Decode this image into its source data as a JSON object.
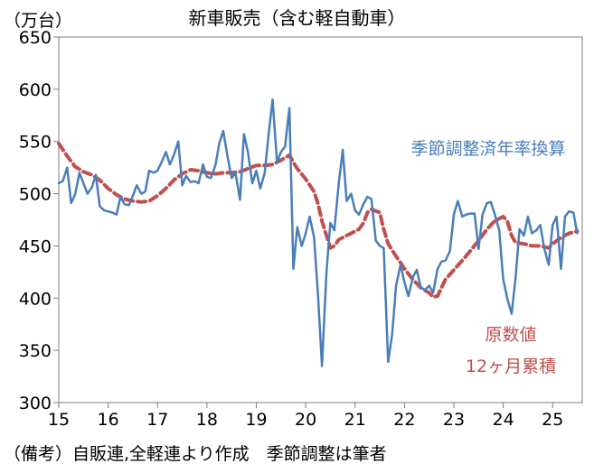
{
  "chart_data": {
    "type": "line",
    "title": "新車販売（含む軽自動車）",
    "unit_label": "（万台）",
    "xlabel": "",
    "ylabel": "",
    "ylim": [
      300,
      650
    ],
    "xlim": [
      15,
      25.6
    ],
    "yticks": [
      "650",
      "600",
      "550",
      "500",
      "450",
      "400",
      "350",
      "300"
    ],
    "xticks": [
      "15",
      "16",
      "17",
      "18",
      "19",
      "20",
      "21",
      "22",
      "23",
      "24",
      "25"
    ],
    "grid": false,
    "footnote": "（備考）自販連,全軽連より作成　季節調整は筆者",
    "series": [
      {
        "name": "季節調整済年率換算",
        "label_lines": [
          "季節調整済年率換算"
        ],
        "color": "#4a7ebb",
        "style": "solid",
        "points": [
          [
            15.0,
            510
          ],
          [
            15.08,
            512
          ],
          [
            15.17,
            525
          ],
          [
            15.25,
            491
          ],
          [
            15.33,
            499
          ],
          [
            15.42,
            520
          ],
          [
            15.5,
            510
          ],
          [
            15.58,
            500
          ],
          [
            15.67,
            506
          ],
          [
            15.75,
            518
          ],
          [
            15.83,
            488
          ],
          [
            15.92,
            484
          ],
          [
            16.0,
            483
          ],
          [
            16.08,
            482
          ],
          [
            16.17,
            480
          ],
          [
            16.25,
            497
          ],
          [
            16.33,
            490
          ],
          [
            16.42,
            489
          ],
          [
            16.5,
            498
          ],
          [
            16.58,
            508
          ],
          [
            16.67,
            500
          ],
          [
            16.75,
            502
          ],
          [
            16.83,
            522
          ],
          [
            16.92,
            520
          ],
          [
            17.0,
            522
          ],
          [
            17.08,
            530
          ],
          [
            17.17,
            540
          ],
          [
            17.25,
            528
          ],
          [
            17.33,
            537
          ],
          [
            17.42,
            550
          ],
          [
            17.5,
            508
          ],
          [
            17.58,
            517
          ],
          [
            17.67,
            511
          ],
          [
            17.75,
            512
          ],
          [
            17.83,
            510
          ],
          [
            17.92,
            528
          ],
          [
            18.0,
            516
          ],
          [
            18.08,
            515
          ],
          [
            18.17,
            527
          ],
          [
            18.25,
            548
          ],
          [
            18.33,
            560
          ],
          [
            18.42,
            535
          ],
          [
            18.5,
            515
          ],
          [
            18.58,
            520
          ],
          [
            18.67,
            494
          ],
          [
            18.75,
            557
          ],
          [
            18.83,
            540
          ],
          [
            18.92,
            510
          ],
          [
            19.0,
            522
          ],
          [
            19.08,
            505
          ],
          [
            19.17,
            520
          ],
          [
            19.25,
            557
          ],
          [
            19.33,
            590
          ],
          [
            19.42,
            530
          ],
          [
            19.5,
            540
          ],
          [
            19.58,
            545
          ],
          [
            19.67,
            582
          ],
          [
            19.75,
            428
          ],
          [
            19.83,
            468
          ],
          [
            19.92,
            450
          ],
          [
            20.0,
            462
          ],
          [
            20.08,
            478
          ],
          [
            20.17,
            458
          ],
          [
            20.25,
            402
          ],
          [
            20.33,
            335
          ],
          [
            20.42,
            425
          ],
          [
            20.5,
            472
          ],
          [
            20.58,
            465
          ],
          [
            20.67,
            510
          ],
          [
            20.75,
            542
          ],
          [
            20.83,
            493
          ],
          [
            20.92,
            500
          ],
          [
            21.0,
            484
          ],
          [
            21.08,
            480
          ],
          [
            21.17,
            490
          ],
          [
            21.25,
            497
          ],
          [
            21.33,
            495
          ],
          [
            21.42,
            455
          ],
          [
            21.5,
            450
          ],
          [
            21.58,
            448
          ],
          [
            21.67,
            339
          ],
          [
            21.75,
            365
          ],
          [
            21.83,
            412
          ],
          [
            21.92,
            432
          ],
          [
            22.0,
            415
          ],
          [
            22.08,
            402
          ],
          [
            22.17,
            420
          ],
          [
            22.25,
            427
          ],
          [
            22.33,
            410
          ],
          [
            22.42,
            408
          ],
          [
            22.5,
            412
          ],
          [
            22.58,
            405
          ],
          [
            22.67,
            428
          ],
          [
            22.75,
            435
          ],
          [
            22.83,
            436
          ],
          [
            22.92,
            445
          ],
          [
            23.0,
            480
          ],
          [
            23.08,
            493
          ],
          [
            23.17,
            478
          ],
          [
            23.25,
            480
          ],
          [
            23.33,
            481
          ],
          [
            23.42,
            481
          ],
          [
            23.5,
            447
          ],
          [
            23.58,
            480
          ],
          [
            23.67,
            491
          ],
          [
            23.75,
            492
          ],
          [
            23.83,
            480
          ],
          [
            23.92,
            465
          ],
          [
            24.0,
            418
          ],
          [
            24.08,
            400
          ],
          [
            24.17,
            385
          ],
          [
            24.25,
            420
          ],
          [
            24.33,
            466
          ],
          [
            24.42,
            460
          ],
          [
            24.5,
            478
          ],
          [
            24.58,
            462
          ],
          [
            24.67,
            465
          ],
          [
            24.75,
            470
          ],
          [
            24.83,
            448
          ],
          [
            24.92,
            432
          ],
          [
            25.0,
            470
          ],
          [
            25.08,
            478
          ],
          [
            25.17,
            428
          ],
          [
            25.25,
            478
          ],
          [
            25.33,
            483
          ],
          [
            25.42,
            482
          ],
          [
            25.5,
            462
          ]
        ]
      },
      {
        "name": "原数値 12ヶ月累積",
        "label_lines": [
          "原数値",
          "12ヶ月累積"
        ],
        "color": "#c0504d",
        "style": "dashed",
        "points": [
          [
            15.0,
            548
          ],
          [
            15.17,
            536
          ],
          [
            15.33,
            526
          ],
          [
            15.5,
            521
          ],
          [
            15.67,
            518
          ],
          [
            15.83,
            513
          ],
          [
            16.0,
            505
          ],
          [
            16.17,
            499
          ],
          [
            16.33,
            495
          ],
          [
            16.5,
            493
          ],
          [
            16.67,
            492
          ],
          [
            16.83,
            493
          ],
          [
            17.0,
            498
          ],
          [
            17.17,
            505
          ],
          [
            17.33,
            513
          ],
          [
            17.5,
            519
          ],
          [
            17.67,
            523
          ],
          [
            17.83,
            522
          ],
          [
            18.0,
            520
          ],
          [
            18.17,
            519
          ],
          [
            18.33,
            520
          ],
          [
            18.5,
            520
          ],
          [
            18.67,
            521
          ],
          [
            18.83,
            524
          ],
          [
            19.0,
            527
          ],
          [
            19.17,
            527
          ],
          [
            19.33,
            528
          ],
          [
            19.5,
            532
          ],
          [
            19.67,
            537
          ],
          [
            19.75,
            530
          ],
          [
            19.83,
            524
          ],
          [
            20.0,
            514
          ],
          [
            20.17,
            502
          ],
          [
            20.25,
            490
          ],
          [
            20.33,
            474
          ],
          [
            20.42,
            460
          ],
          [
            20.5,
            448
          ],
          [
            20.58,
            450
          ],
          [
            20.67,
            456
          ],
          [
            20.75,
            458
          ],
          [
            20.83,
            460
          ],
          [
            20.92,
            462
          ],
          [
            21.0,
            464
          ],
          [
            21.08,
            466
          ],
          [
            21.17,
            472
          ],
          [
            21.25,
            482
          ],
          [
            21.33,
            485
          ],
          [
            21.5,
            482
          ],
          [
            21.58,
            466
          ],
          [
            21.67,
            452
          ],
          [
            21.75,
            446
          ],
          [
            21.83,
            440
          ],
          [
            21.92,
            434
          ],
          [
            22.0,
            428
          ],
          [
            22.17,
            418
          ],
          [
            22.33,
            410
          ],
          [
            22.5,
            405
          ],
          [
            22.58,
            401
          ],
          [
            22.67,
            402
          ],
          [
            22.75,
            410
          ],
          [
            22.83,
            418
          ],
          [
            23.0,
            427
          ],
          [
            23.17,
            436
          ],
          [
            23.33,
            445
          ],
          [
            23.5,
            455
          ],
          [
            23.67,
            466
          ],
          [
            23.83,
            474
          ],
          [
            24.0,
            478
          ],
          [
            24.08,
            474
          ],
          [
            24.17,
            460
          ],
          [
            24.25,
            453
          ],
          [
            24.42,
            452
          ],
          [
            24.58,
            450
          ],
          [
            24.75,
            450
          ],
          [
            24.92,
            448
          ],
          [
            25.0,
            452
          ],
          [
            25.17,
            458
          ],
          [
            25.33,
            462
          ],
          [
            25.5,
            464
          ]
        ]
      }
    ]
  }
}
